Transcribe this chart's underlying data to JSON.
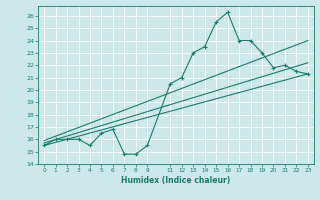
{
  "xlabel": "Humidex (Indice chaleur)",
  "bg_color": "#cde8ea",
  "grid_color": "#ffffff",
  "line_color": "#1a7a6e",
  "xlim": [
    -0.5,
    23.5
  ],
  "ylim": [
    14,
    26.8
  ],
  "xticks": [
    0,
    1,
    2,
    3,
    4,
    5,
    6,
    7,
    8,
    9,
    11,
    12,
    13,
    14,
    15,
    16,
    17,
    18,
    19,
    20,
    21,
    22,
    23
  ],
  "yticks": [
    14,
    15,
    16,
    17,
    18,
    19,
    20,
    21,
    22,
    23,
    24,
    25,
    26
  ],
  "line1_x": [
    0,
    1,
    2,
    3,
    4,
    5,
    6,
    7,
    8,
    9,
    11,
    12,
    13,
    14,
    15,
    16,
    17,
    18,
    19,
    20,
    21,
    22,
    23
  ],
  "line1_y": [
    15.5,
    16.0,
    16.0,
    16.0,
    15.5,
    16.5,
    16.8,
    14.8,
    14.8,
    15.5,
    20.5,
    21.0,
    23.0,
    23.5,
    25.5,
    26.3,
    24.0,
    24.0,
    23.0,
    21.8,
    22.0,
    21.5,
    21.3
  ],
  "line2_x": [
    0,
    23
  ],
  "line2_y": [
    15.5,
    21.3
  ],
  "line3_x": [
    0,
    23
  ],
  "line3_y": [
    15.7,
    22.2
  ],
  "line4_x": [
    0,
    23
  ],
  "line4_y": [
    15.9,
    24.0
  ]
}
